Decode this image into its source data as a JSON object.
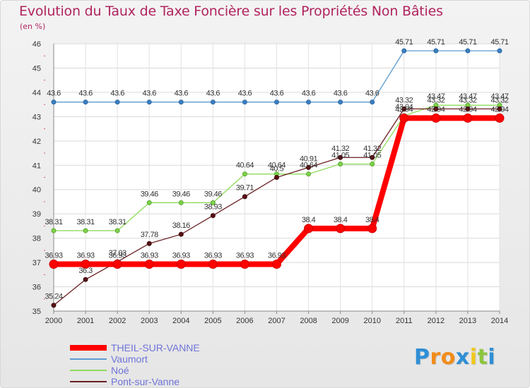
{
  "colors": {
    "THEIL-SUR-VANNE": "#ff0000",
    "Vaumort": "#5b9bd0",
    "Noé": "#8edb5a",
    "Pont-sur-Vanne": "#6b1f22",
    "title": "#b0245e",
    "legend_text": "#6f74d8"
  },
  "logo": {
    "letters": [
      {
        "ch": "P",
        "color": "#2e8fd6"
      },
      {
        "ch": "r",
        "color": "#f28c1a"
      },
      {
        "ch": "o",
        "color": "#f28c1a"
      },
      {
        "ch": "x",
        "color": "#2e8fd6"
      },
      {
        "ch": "i",
        "color": "#f2c81a"
      },
      {
        "ch": "t",
        "color": "#8cc63f"
      },
      {
        "ch": "i",
        "color": "#2e8fd6"
      }
    ]
  },
  "chart_data": {
    "type": "line",
    "title": "Evolution du Taux de Taxe Foncière sur les Propriétés Non Bâties",
    "ylabel": "(en %)",
    "xlabel": "",
    "ylim": [
      35,
      46
    ],
    "yticks": [
      "35",
      "36",
      "37",
      "38",
      "39",
      "40",
      "41",
      "42",
      "43",
      "44",
      "45",
      "46"
    ],
    "categories": [
      "2000",
      "2001",
      "2002",
      "2003",
      "2004",
      "2005",
      "2006",
      "2007",
      "2008",
      "2009",
      "2010",
      "2011",
      "2012",
      "2013",
      "2014"
    ],
    "series": [
      {
        "name": "Vaumort",
        "values": [
          43.6,
          43.6,
          43.6,
          43.6,
          43.6,
          43.6,
          43.6,
          43.6,
          43.6,
          43.6,
          43.6,
          45.71,
          45.71,
          45.71,
          45.71
        ],
        "labels": [
          "43.6",
          "43.6",
          "43.6",
          "43.6",
          "43.6",
          "43.6",
          "43.6",
          "43.6",
          "43.6",
          "43.6",
          "43.6",
          "45.71",
          "45.71",
          "45.71",
          "45.71"
        ]
      },
      {
        "name": "Noé",
        "values": [
          38.31,
          38.31,
          38.31,
          39.46,
          39.46,
          39.46,
          40.64,
          40.64,
          40.64,
          41.05,
          41.05,
          43.04,
          43.47,
          43.47,
          43.47
        ],
        "labels": [
          "38.31",
          "38.31",
          "38.31",
          "39.46",
          "39.46",
          "39.46",
          "40.64",
          "40.64",
          "40.64",
          "41.05",
          "41.05",
          "43.04",
          "43.47",
          "43.47",
          "43.47"
        ]
      },
      {
        "name": "Pont-sur-Vanne",
        "values": [
          35.24,
          36.3,
          37.03,
          37.78,
          38.16,
          38.93,
          39.71,
          40.5,
          40.91,
          41.32,
          41.32,
          43.32,
          43.32,
          43.32,
          43.32
        ],
        "labels": [
          "35.24",
          "36.3",
          "37.03",
          "37.78",
          "38.16",
          "38.93",
          "39.71",
          "40.5",
          "40.91",
          "41.32",
          "41.32",
          "43.32",
          "43.32",
          "43.32",
          "43.32"
        ]
      },
      {
        "name": "THEIL-SUR-VANNE",
        "values": [
          36.93,
          36.93,
          36.93,
          36.93,
          36.93,
          36.93,
          36.93,
          36.93,
          38.4,
          38.4,
          38.4,
          42.94,
          42.94,
          42.94,
          42.94
        ],
        "labels": [
          "36.93",
          "36.93",
          "36.93",
          "36.93",
          "36.93",
          "36.93",
          "36.93",
          "36.93",
          "38.4",
          "38.4",
          "38.4",
          "42.94",
          "42.94",
          "42.94",
          "42.94"
        ]
      }
    ],
    "legend": [
      "THEIL-SUR-VANNE",
      "Vaumort",
      "Noé",
      "Pont-sur-Vanne"
    ],
    "legend_position": "bottom-left",
    "grid": true
  }
}
